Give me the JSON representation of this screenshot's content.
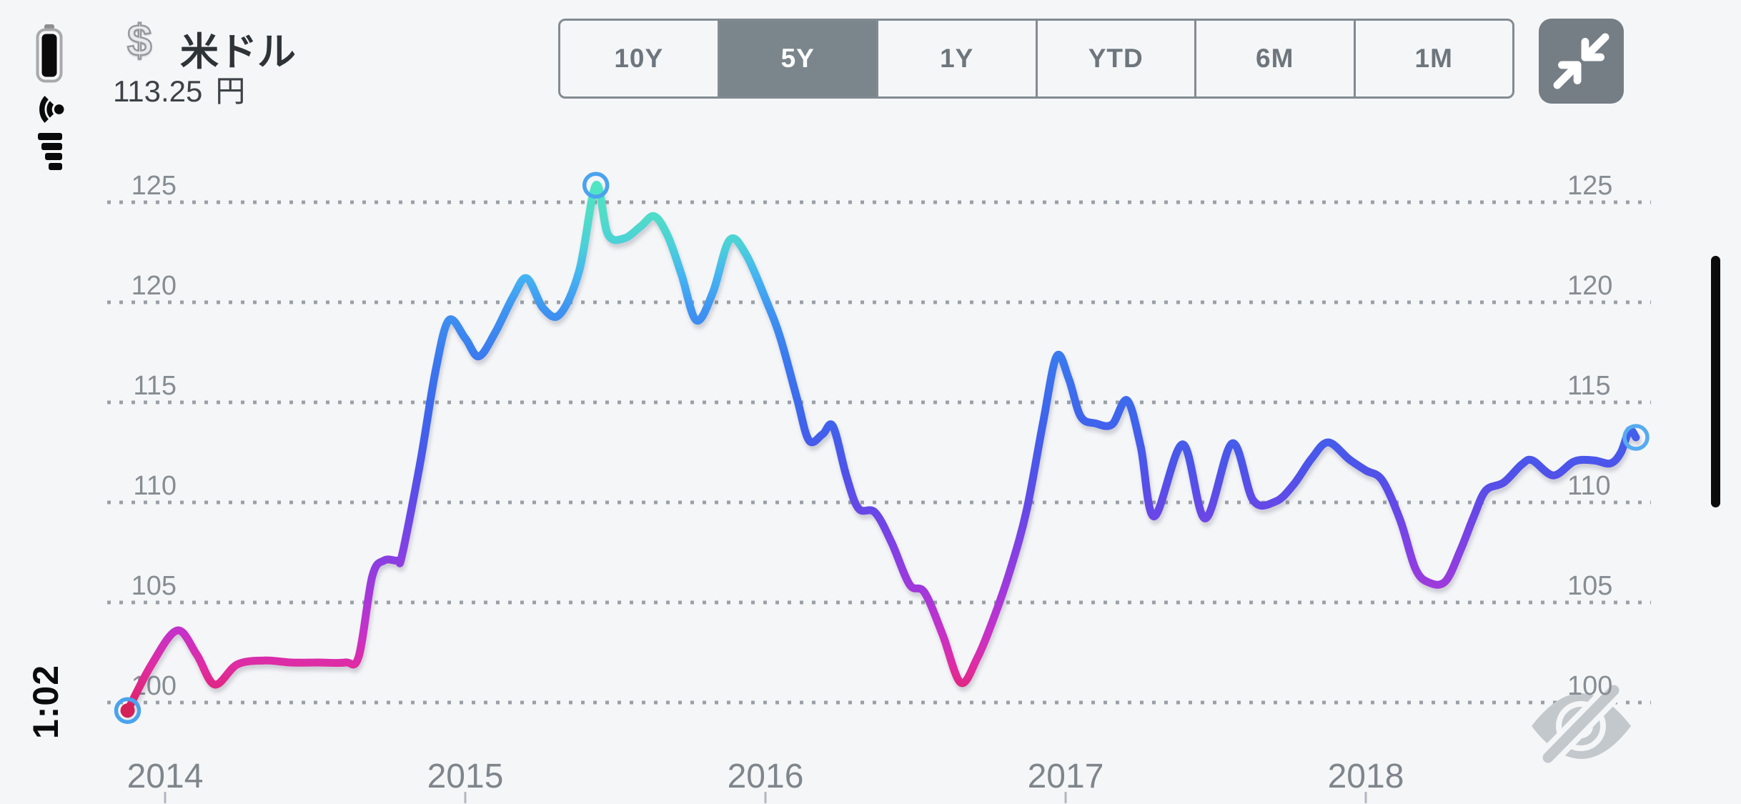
{
  "status_bar": {
    "time": "1:02",
    "icons": [
      "battery-full",
      "wifi",
      "cellular-signal"
    ]
  },
  "header": {
    "symbol": "$",
    "name": "米ドル",
    "price": "113.25",
    "unit": "円"
  },
  "range_selector": {
    "options": [
      {
        "label": "10Y",
        "selected": false
      },
      {
        "label": "5Y",
        "selected": true
      },
      {
        "label": "1Y",
        "selected": false
      },
      {
        "label": "YTD",
        "selected": false
      },
      {
        "label": "6M",
        "selected": false
      },
      {
        "label": "1M",
        "selected": false
      }
    ]
  },
  "collapse_button": {
    "icon": "collapse-arrows"
  },
  "watermark": {
    "icon": "visibility-off"
  },
  "chart_data": {
    "type": "line",
    "x_axis": {
      "ticks": [
        {
          "label": "2014",
          "year": 2014
        },
        {
          "label": "2015",
          "year": 2015
        },
        {
          "label": "2016",
          "year": 2016
        },
        {
          "label": "2017",
          "year": 2017
        },
        {
          "label": "2018",
          "year": 2018
        }
      ]
    },
    "y_axis": {
      "ticks": [
        125,
        120,
        115,
        110,
        105,
        100
      ],
      "sides": "both",
      "unit": "円"
    },
    "xlim": [
      2013.83,
      2018.95
    ],
    "ylim": [
      99.3,
      126.6
    ],
    "grid": "dotted-horizontal",
    "line": {
      "width": 11,
      "gradient": [
        {
          "v": 126.4,
          "c": "#50e8c2"
        },
        {
          "v": 124.3,
          "c": "#50dcc8"
        },
        {
          "v": 122.8,
          "c": "#4bd0d9"
        },
        {
          "v": 121.3,
          "c": "#45b3f2"
        },
        {
          "v": 119.5,
          "c": "#3e92f1"
        },
        {
          "v": 117.0,
          "c": "#3a77ee"
        },
        {
          "v": 114.0,
          "c": "#3f63ec"
        },
        {
          "v": 111.5,
          "c": "#4f52e9"
        },
        {
          "v": 109.5,
          "c": "#6847e7"
        },
        {
          "v": 107.5,
          "c": "#8440e4"
        },
        {
          "v": 105.5,
          "c": "#a338da"
        },
        {
          "v": 103.5,
          "c": "#c631c8"
        },
        {
          "v": 101.8,
          "c": "#e02ca2"
        },
        {
          "v": 100.3,
          "c": "#e02576"
        },
        {
          "v": 99.4,
          "c": "#d51f5b"
        }
      ]
    },
    "markers": [
      {
        "year": 2013.875,
        "value": 99.6,
        "kind": "start-dot",
        "dot_color": "#d42158",
        "ring_color": "#4aa3ee"
      },
      {
        "year": 2015.435,
        "value": 125.85,
        "kind": "peak-ring",
        "ring_color": "#4aa3ee"
      },
      {
        "year": 2018.9,
        "value": 113.25,
        "kind": "end-ring",
        "ring_color": "#55abf0"
      }
    ],
    "points": [
      [
        2013.875,
        99.6
      ],
      [
        2013.955,
        101.9
      ],
      [
        2014.04,
        103.6
      ],
      [
        2014.105,
        102.4
      ],
      [
        2014.165,
        100.9
      ],
      [
        2014.24,
        101.9
      ],
      [
        2014.33,
        102.1
      ],
      [
        2014.42,
        102.0
      ],
      [
        2014.51,
        102.0
      ],
      [
        2014.6,
        102.0
      ],
      [
        2014.645,
        102.3
      ],
      [
        2014.69,
        106.3
      ],
      [
        2014.73,
        107.1
      ],
      [
        2014.775,
        107.1
      ],
      [
        2014.79,
        107.4
      ],
      [
        2014.85,
        112.0
      ],
      [
        2014.9,
        116.5
      ],
      [
        2014.945,
        119.1
      ],
      [
        2015.0,
        118.2
      ],
      [
        2015.045,
        117.3
      ],
      [
        2015.1,
        118.5
      ],
      [
        2015.16,
        120.3
      ],
      [
        2015.205,
        121.2
      ],
      [
        2015.26,
        119.7
      ],
      [
        2015.315,
        119.4
      ],
      [
        2015.38,
        121.6
      ],
      [
        2015.435,
        125.85
      ],
      [
        2015.475,
        123.4
      ],
      [
        2015.53,
        123.2
      ],
      [
        2015.585,
        123.8
      ],
      [
        2015.63,
        124.3
      ],
      [
        2015.675,
        123.3
      ],
      [
        2015.72,
        121.4
      ],
      [
        2015.77,
        119.1
      ],
      [
        2015.825,
        120.5
      ],
      [
        2015.88,
        123.1
      ],
      [
        2015.935,
        122.4
      ],
      [
        2016.005,
        120.0
      ],
      [
        2016.05,
        118.2
      ],
      [
        2016.105,
        115.2
      ],
      [
        2016.145,
        113.1
      ],
      [
        2016.19,
        113.4
      ],
      [
        2016.225,
        113.8
      ],
      [
        2016.27,
        111.3
      ],
      [
        2016.31,
        109.7
      ],
      [
        2016.365,
        109.5
      ],
      [
        2016.42,
        108.0
      ],
      [
        2016.48,
        105.9
      ],
      [
        2016.53,
        105.5
      ],
      [
        2016.59,
        103.4
      ],
      [
        2016.65,
        101.0
      ],
      [
        2016.705,
        102.2
      ],
      [
        2016.76,
        104.2
      ],
      [
        2016.815,
        106.6
      ],
      [
        2016.87,
        109.6
      ],
      [
        2016.925,
        114.0
      ],
      [
        2016.97,
        117.3
      ],
      [
        2017.01,
        116.2
      ],
      [
        2017.05,
        114.3
      ],
      [
        2017.1,
        113.95
      ],
      [
        2017.155,
        113.9
      ],
      [
        2017.205,
        115.1
      ],
      [
        2017.25,
        112.8
      ],
      [
        2017.295,
        109.3
      ],
      [
        2017.39,
        112.9
      ],
      [
        2017.465,
        109.2
      ],
      [
        2017.555,
        112.95
      ],
      [
        2017.625,
        110.1
      ],
      [
        2017.7,
        110.05
      ],
      [
        2017.76,
        110.9
      ],
      [
        2017.82,
        112.2
      ],
      [
        2017.875,
        113.0
      ],
      [
        2017.945,
        112.15
      ],
      [
        2018.0,
        111.6
      ],
      [
        2018.055,
        111.1
      ],
      [
        2018.115,
        109.1
      ],
      [
        2018.165,
        106.7
      ],
      [
        2018.21,
        106.0
      ],
      [
        2018.265,
        106.05
      ],
      [
        2018.315,
        107.6
      ],
      [
        2018.36,
        109.3
      ],
      [
        2018.4,
        110.6
      ],
      [
        2018.46,
        111.0
      ],
      [
        2018.52,
        111.9
      ],
      [
        2018.555,
        112.1
      ],
      [
        2018.625,
        111.35
      ],
      [
        2018.695,
        112.05
      ],
      [
        2018.76,
        112.1
      ],
      [
        2018.815,
        111.95
      ],
      [
        2018.85,
        112.5
      ],
      [
        2018.878,
        113.6
      ],
      [
        2018.9,
        113.25
      ]
    ]
  }
}
